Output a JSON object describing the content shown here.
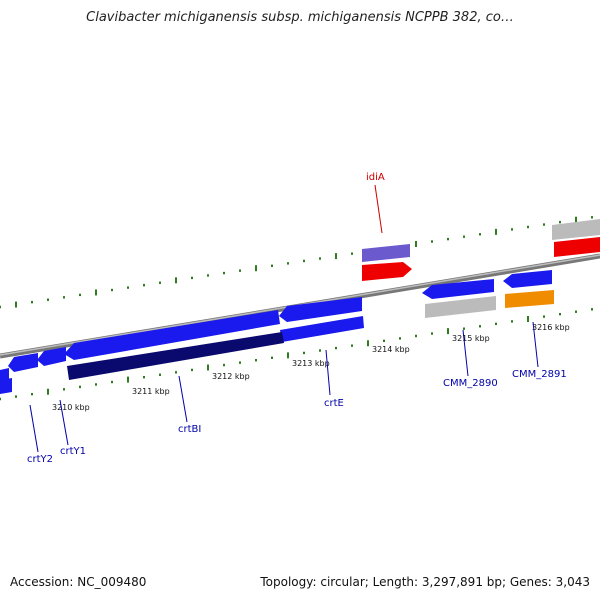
{
  "title": "Clavibacter michiganensis subsp. michiganensis NCPPB 382, co…",
  "footer": {
    "accession": "Accession: NC_009480",
    "summary": "Topology: circular; Length: 3,297,891 bp; Genes: 3,043"
  },
  "ticks": [
    "3210 kbp",
    "3211 kbp",
    "3212 kbp",
    "3213 kbp",
    "3214 kbp",
    "3215 kbp",
    "3216 kbp"
  ],
  "genes": [
    {
      "id": "crtY2",
      "label": "crtY2",
      "color": "#0000aa"
    },
    {
      "id": "crtY1",
      "label": "crtY1",
      "color": "#0000aa"
    },
    {
      "id": "crtBI",
      "label": "crtBI",
      "color": "#0000aa"
    },
    {
      "id": "crtE",
      "label": "crtE",
      "color": "#0000aa"
    },
    {
      "id": "idiA",
      "label": "idiA",
      "color": "#cc0000"
    },
    {
      "id": "CMM_2890",
      "label": "CMM_2890",
      "color": "#0000aa"
    },
    {
      "id": "CMM_2891",
      "label": "CMM_2891",
      "color": "#0000aa"
    }
  ],
  "colors": {
    "backbone": "#888888",
    "tick_marks": "#2e7d1e",
    "gene_blue": "#1a1aee",
    "gene_dark_navy": "#0a0a6e",
    "gene_red": "#ee0000",
    "gene_purple": "#6a5acd",
    "gene_gray": "#bbbbbb",
    "gene_orange": "#f08c00"
  }
}
